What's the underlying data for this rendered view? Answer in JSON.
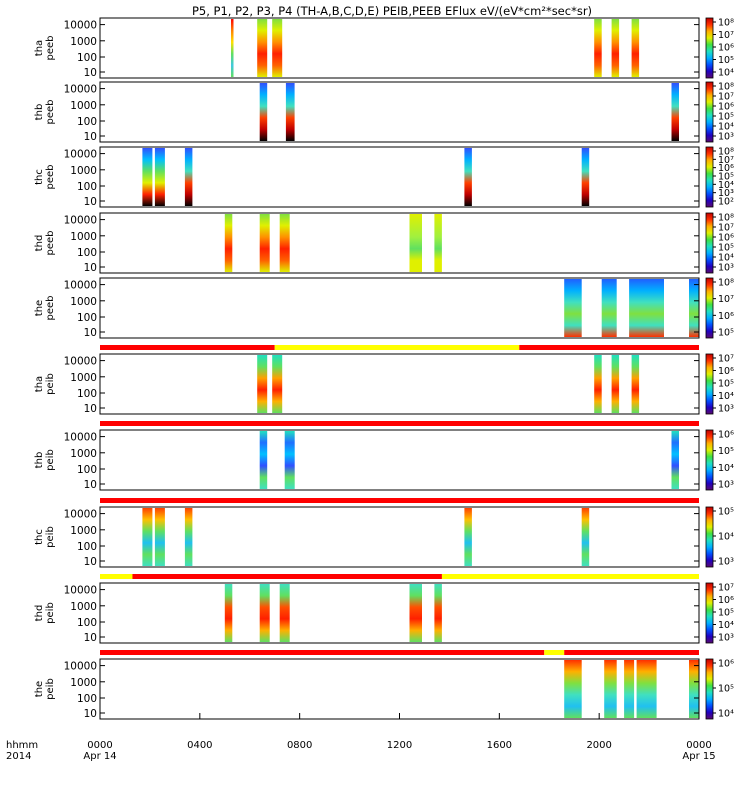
{
  "title": "P5, P1, P2, P3, P4 (TH-A,B,C,D,E) PEIB,PEEB EFlux eV/(eV*cm²*sec*sr)",
  "colormap": [
    "#5a0a6e",
    "#2000c0",
    "#0050ff",
    "#00b0ff",
    "#20e0c0",
    "#40e040",
    "#e0f000",
    "#ffb000",
    "#ff3000",
    "#c00000"
  ],
  "flag_colors": {
    "red": "#ff0000",
    "yellow": "#ffff00"
  },
  "xaxis": {
    "corner_labels": [
      "hhmm",
      "2014"
    ],
    "ticks": [
      {
        "t": 0,
        "l1": "0000",
        "l2": "Apr 14"
      },
      {
        "t": 4,
        "l1": "0400",
        "l2": ""
      },
      {
        "t": 8,
        "l1": "0800",
        "l2": ""
      },
      {
        "t": 12,
        "l1": "1200",
        "l2": ""
      },
      {
        "t": 16,
        "l1": "1600",
        "l2": ""
      },
      {
        "t": 20,
        "l1": "2000",
        "l2": ""
      },
      {
        "t": 24,
        "l1": "0000",
        "l2": "Apr 15"
      }
    ]
  },
  "chart_data": {
    "type": "heatmap",
    "x_range_hours": [
      0,
      24
    ],
    "x_unit": "hours UT, 2014-04-14",
    "y_scale": "log",
    "panels": [
      {
        "id": "tha_peeb",
        "ylabel": [
          "tha",
          "peeb"
        ],
        "yticks": [
          "10000",
          "1000",
          "100",
          "10"
        ],
        "cbar": [
          "10⁸",
          "10⁷",
          "10⁶",
          "10⁵",
          "10⁴"
        ],
        "segments": [
          [
            5.25,
            5.35,
            0
          ],
          [
            6.3,
            6.7,
            1
          ],
          [
            6.9,
            7.3,
            1
          ],
          [
            19.8,
            20.1,
            1
          ],
          [
            20.5,
            20.8,
            1
          ],
          [
            21.3,
            21.6,
            1
          ]
        ]
      },
      {
        "id": "thb_peeb",
        "ylabel": [
          "thb",
          "peeb"
        ],
        "yticks": [
          "10000",
          "1000",
          "100",
          "10"
        ],
        "cbar": [
          "10⁸",
          "10⁷",
          "10⁶",
          "10⁵",
          "10⁴",
          "10³"
        ],
        "segments": [
          [
            6.4,
            6.7,
            2
          ],
          [
            7.45,
            7.8,
            2
          ],
          [
            22.9,
            23.2,
            2
          ]
        ]
      },
      {
        "id": "thc_peeb",
        "ylabel": [
          "thc",
          "peeb"
        ],
        "yticks": [
          "10000",
          "1000",
          "100",
          "10"
        ],
        "cbar": [
          "10⁸",
          "10⁷",
          "10⁶",
          "10⁵",
          "10⁴",
          "10³",
          "10²"
        ],
        "segments": [
          [
            1.7,
            2.1,
            3
          ],
          [
            2.2,
            2.6,
            3
          ],
          [
            3.4,
            3.7,
            2
          ],
          [
            14.6,
            14.9,
            2
          ],
          [
            19.3,
            19.6,
            2
          ]
        ]
      },
      {
        "id": "thd_peeb",
        "ylabel": [
          "thd",
          "peeb"
        ],
        "yticks": [
          "10000",
          "1000",
          "100",
          "10"
        ],
        "cbar": [
          "10⁸",
          "10⁷",
          "10⁶",
          "10⁵",
          "10⁴",
          "10³"
        ],
        "segments": [
          [
            5.0,
            5.3,
            1
          ],
          [
            6.4,
            6.8,
            1
          ],
          [
            7.2,
            7.6,
            1
          ],
          [
            12.4,
            12.9,
            4
          ],
          [
            13.4,
            13.7,
            4
          ]
        ]
      },
      {
        "id": "the_peeb",
        "ylabel": [
          "the",
          "peeb"
        ],
        "yticks": [
          "10000",
          "1000",
          "100",
          "10"
        ],
        "cbar": [
          "10⁸",
          "10⁷",
          "10⁶",
          "10⁵"
        ],
        "segments": [
          [
            18.6,
            19.3,
            5
          ],
          [
            20.1,
            20.7,
            5
          ],
          [
            21.2,
            22.6,
            5
          ],
          [
            23.6,
            24.0,
            5
          ]
        ]
      },
      {
        "id": "tha_peib",
        "ylabel": [
          "tha",
          "peib"
        ],
        "yticks": [
          "10000",
          "1000",
          "100",
          "10"
        ],
        "cbar": [
          "10⁷",
          "10⁶",
          "10⁵",
          "10⁴",
          "10³"
        ],
        "flag": [
          [
            0,
            7.0,
            "red"
          ],
          [
            7.0,
            16.8,
            "yellow"
          ],
          [
            16.8,
            24,
            "red"
          ]
        ],
        "segments": [
          [
            6.3,
            6.7,
            6
          ],
          [
            6.9,
            7.3,
            6
          ],
          [
            19.8,
            20.1,
            6
          ],
          [
            20.5,
            20.8,
            6
          ],
          [
            21.3,
            21.6,
            6
          ]
        ]
      },
      {
        "id": "thb_peib",
        "ylabel": [
          "thb",
          "peib"
        ],
        "yticks": [
          "10000",
          "1000",
          "100",
          "10"
        ],
        "cbar": [
          "10⁶",
          "10⁵",
          "10⁴",
          "10³"
        ],
        "flag": [
          [
            0,
            24,
            "red"
          ]
        ],
        "segments": [
          [
            6.4,
            6.7,
            7
          ],
          [
            7.4,
            7.8,
            7
          ],
          [
            22.9,
            23.2,
            7
          ]
        ]
      },
      {
        "id": "thc_peib",
        "ylabel": [
          "thc",
          "peib"
        ],
        "yticks": [
          "10000",
          "1000",
          "100",
          "10"
        ],
        "cbar": [
          "10⁵",
          "10⁴",
          "10³"
        ],
        "flag": [
          [
            0,
            24,
            "red"
          ]
        ],
        "segments": [
          [
            1.7,
            2.1,
            8
          ],
          [
            2.2,
            2.6,
            8
          ],
          [
            3.4,
            3.7,
            8
          ],
          [
            14.6,
            14.9,
            8
          ],
          [
            19.3,
            19.6,
            8
          ]
        ]
      },
      {
        "id": "thd_peib",
        "ylabel": [
          "thd",
          "peib"
        ],
        "yticks": [
          "10000",
          "1000",
          "100",
          "10"
        ],
        "cbar": [
          "10⁷",
          "10⁶",
          "10⁵",
          "10⁴",
          "10³"
        ],
        "flag": [
          [
            0,
            1.3,
            "yellow"
          ],
          [
            1.3,
            13.7,
            "red"
          ],
          [
            13.7,
            24,
            "yellow"
          ]
        ],
        "segments": [
          [
            5.0,
            5.3,
            9
          ],
          [
            6.4,
            6.8,
            9
          ],
          [
            7.2,
            7.6,
            9
          ],
          [
            12.4,
            12.9,
            9
          ],
          [
            13.4,
            13.7,
            9
          ]
        ]
      },
      {
        "id": "the_peib",
        "ylabel": [
          "the",
          "peib"
        ],
        "yticks": [
          "10000",
          "1000",
          "100",
          "10"
        ],
        "cbar": [
          "10⁶",
          "10⁵",
          "10⁴"
        ],
        "flag": [
          [
            0,
            17.8,
            "red"
          ],
          [
            17.8,
            18.6,
            "yellow"
          ],
          [
            18.6,
            24,
            "red"
          ]
        ],
        "segments": [
          [
            18.6,
            19.3,
            10
          ],
          [
            20.2,
            20.7,
            10
          ],
          [
            21.0,
            21.4,
            10
          ],
          [
            21.5,
            22.3,
            10
          ],
          [
            23.6,
            24.0,
            10
          ]
        ]
      }
    ]
  }
}
